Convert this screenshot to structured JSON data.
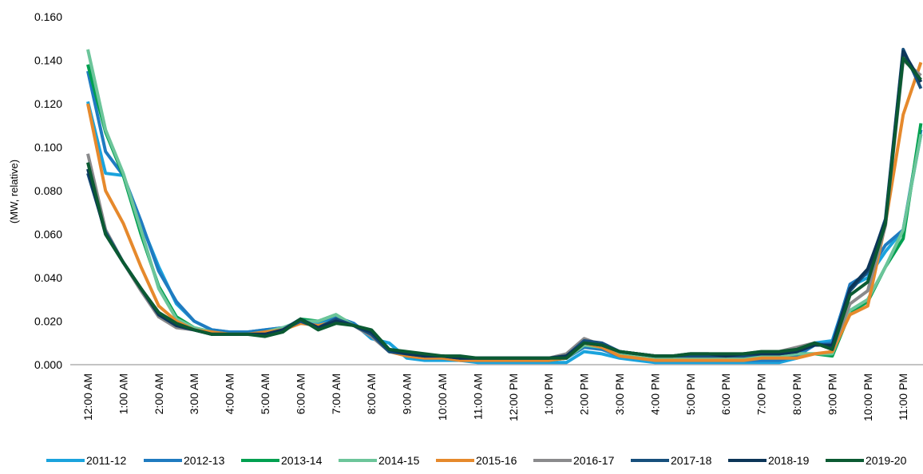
{
  "chart_data": {
    "type": "line",
    "y_label": "(MW, relative)",
    "categories": [
      "12:00 AM",
      null,
      "1:00 AM",
      null,
      "2:00 AM",
      null,
      "3:00 AM",
      null,
      "4:00 AM",
      null,
      "5:00 AM",
      null,
      "6:00 AM",
      null,
      "7:00 AM",
      null,
      "8:00 AM",
      null,
      "9:00 AM",
      null,
      "10:00 AM",
      null,
      "11:00 AM",
      null,
      "12:00 PM",
      null,
      "1:00 PM",
      null,
      "2:00 PM",
      null,
      "3:00 PM",
      null,
      "4:00 PM",
      null,
      "5:00 PM",
      null,
      "6:00 PM",
      null,
      "7:00 PM",
      null,
      "8:00 PM",
      null,
      "9:00 PM",
      null,
      "10:00 PM",
      null,
      "11:00 PM",
      null
    ],
    "ylim": [
      0,
      0.16
    ],
    "yticks": [
      {
        "value": 0,
        "label": "0.000"
      },
      {
        "value": 0.02,
        "label": "0.020"
      },
      {
        "value": 0.04,
        "label": "0.040"
      },
      {
        "value": 0.06,
        "label": "0.060"
      },
      {
        "value": 0.08,
        "label": "0.080"
      },
      {
        "value": 0.1,
        "label": "0.100"
      },
      {
        "value": 0.12,
        "label": "0.120"
      },
      {
        "value": 0.14,
        "label": "0.140"
      },
      {
        "value": 0.16,
        "label": "0.160"
      }
    ],
    "grid": false,
    "legend": "bottom",
    "series": [
      {
        "name": "2011-12",
        "color": "#1aa3dd",
        "values": [
          0.121,
          0.088,
          0.087,
          0.065,
          0.045,
          0.028,
          0.02,
          0.016,
          0.015,
          0.015,
          0.016,
          0.017,
          0.019,
          0.019,
          0.022,
          0.019,
          0.012,
          0.01,
          0.003,
          0.002,
          0.002,
          0.002,
          0.001,
          0.001,
          0.001,
          0.001,
          0.001,
          0.001,
          0.006,
          0.005,
          0.003,
          0.002,
          0.001,
          0.001,
          0.001,
          0.001,
          0.001,
          0.001,
          0.001,
          0.001,
          0.003,
          0.01,
          0.011,
          0.036,
          0.04,
          0.052,
          0.062,
          0.106
        ]
      },
      {
        "name": "2012-13",
        "color": "#1f7bc0",
        "values": [
          0.135,
          0.098,
          0.087,
          0.066,
          0.043,
          0.029,
          0.02,
          0.016,
          0.015,
          0.015,
          0.016,
          0.017,
          0.02,
          0.02,
          0.022,
          0.019,
          0.013,
          0.007,
          0.004,
          0.003,
          0.003,
          0.002,
          0.002,
          0.002,
          0.002,
          0.002,
          0.002,
          0.003,
          0.008,
          0.007,
          0.004,
          0.003,
          0.002,
          0.002,
          0.002,
          0.002,
          0.002,
          0.002,
          0.002,
          0.002,
          0.004,
          0.009,
          0.01,
          0.037,
          0.042,
          0.055,
          0.062,
          0.108
        ]
      },
      {
        "name": "2013-14",
        "color": "#00a050",
        "values": [
          0.138,
          0.107,
          0.087,
          0.06,
          0.036,
          0.022,
          0.017,
          0.015,
          0.014,
          0.014,
          0.015,
          0.016,
          0.021,
          0.02,
          0.023,
          0.018,
          0.014,
          0.006,
          0.005,
          0.004,
          0.004,
          0.003,
          0.003,
          0.003,
          0.003,
          0.003,
          0.002,
          0.003,
          0.009,
          0.008,
          0.005,
          0.004,
          0.003,
          0.003,
          0.003,
          0.003,
          0.003,
          0.003,
          0.004,
          0.004,
          0.005,
          0.005,
          0.004,
          0.024,
          0.029,
          0.045,
          0.058,
          0.111
        ]
      },
      {
        "name": "2014-15",
        "color": "#6cc59a",
        "values": [
          0.145,
          0.108,
          0.088,
          0.062,
          0.035,
          0.021,
          0.017,
          0.015,
          0.014,
          0.014,
          0.015,
          0.017,
          0.02,
          0.02,
          0.023,
          0.018,
          0.014,
          0.006,
          0.005,
          0.004,
          0.004,
          0.003,
          0.003,
          0.003,
          0.003,
          0.003,
          0.003,
          0.003,
          0.009,
          0.008,
          0.005,
          0.004,
          0.003,
          0.003,
          0.003,
          0.003,
          0.003,
          0.003,
          0.004,
          0.004,
          0.005,
          0.005,
          0.005,
          0.025,
          0.03,
          0.045,
          0.062,
          0.106
        ]
      },
      {
        "name": "2015-16",
        "color": "#e6892c",
        "values": [
          0.12,
          0.08,
          0.065,
          0.045,
          0.027,
          0.02,
          0.016,
          0.015,
          0.014,
          0.014,
          0.015,
          0.016,
          0.019,
          0.018,
          0.02,
          0.018,
          0.014,
          0.006,
          0.004,
          0.003,
          0.003,
          0.002,
          0.002,
          0.002,
          0.002,
          0.002,
          0.002,
          0.003,
          0.01,
          0.008,
          0.004,
          0.003,
          0.002,
          0.002,
          0.002,
          0.002,
          0.002,
          0.002,
          0.003,
          0.003,
          0.003,
          0.005,
          0.006,
          0.023,
          0.027,
          0.065,
          0.115,
          0.139
        ]
      },
      {
        "name": "2016-17",
        "color": "#8a8a8c",
        "values": [
          0.097,
          0.062,
          0.047,
          0.034,
          0.022,
          0.017,
          0.016,
          0.014,
          0.014,
          0.014,
          0.014,
          0.016,
          0.02,
          0.017,
          0.02,
          0.018,
          0.013,
          0.006,
          0.005,
          0.004,
          0.004,
          0.003,
          0.003,
          0.003,
          0.003,
          0.003,
          0.003,
          0.005,
          0.012,
          0.009,
          0.006,
          0.005,
          0.004,
          0.004,
          0.004,
          0.004,
          0.004,
          0.005,
          0.006,
          0.006,
          0.008,
          0.01,
          0.007,
          0.028,
          0.034,
          0.064,
          0.14,
          0.133
        ]
      },
      {
        "name": "2017-18",
        "color": "#174f7c",
        "values": [
          0.088,
          0.061,
          0.047,
          0.035,
          0.023,
          0.018,
          0.016,
          0.014,
          0.014,
          0.014,
          0.014,
          0.016,
          0.02,
          0.017,
          0.021,
          0.018,
          0.014,
          0.006,
          0.005,
          0.004,
          0.004,
          0.003,
          0.003,
          0.003,
          0.003,
          0.003,
          0.003,
          0.004,
          0.011,
          0.01,
          0.006,
          0.005,
          0.004,
          0.004,
          0.004,
          0.004,
          0.004,
          0.004,
          0.005,
          0.005,
          0.006,
          0.01,
          0.008,
          0.034,
          0.043,
          0.067,
          0.145,
          0.127
        ]
      },
      {
        "name": "2018-19",
        "color": "#0c3558",
        "values": [
          0.09,
          0.06,
          0.047,
          0.035,
          0.023,
          0.018,
          0.016,
          0.014,
          0.014,
          0.014,
          0.014,
          0.016,
          0.021,
          0.017,
          0.02,
          0.018,
          0.015,
          0.007,
          0.005,
          0.004,
          0.004,
          0.003,
          0.003,
          0.003,
          0.003,
          0.003,
          0.003,
          0.004,
          0.01,
          0.009,
          0.006,
          0.005,
          0.004,
          0.004,
          0.005,
          0.005,
          0.004,
          0.005,
          0.005,
          0.005,
          0.006,
          0.009,
          0.009,
          0.035,
          0.044,
          0.066,
          0.144,
          0.13
        ]
      },
      {
        "name": "2019-20",
        "color": "#0b5a32",
        "values": [
          0.093,
          0.06,
          0.047,
          0.035,
          0.024,
          0.019,
          0.016,
          0.014,
          0.014,
          0.014,
          0.013,
          0.015,
          0.021,
          0.016,
          0.019,
          0.018,
          0.016,
          0.007,
          0.006,
          0.005,
          0.004,
          0.004,
          0.003,
          0.003,
          0.003,
          0.003,
          0.003,
          0.003,
          0.01,
          0.009,
          0.006,
          0.005,
          0.004,
          0.004,
          0.005,
          0.005,
          0.005,
          0.005,
          0.006,
          0.006,
          0.007,
          0.01,
          0.007,
          0.032,
          0.038,
          0.065,
          0.141,
          0.131
        ]
      }
    ]
  }
}
